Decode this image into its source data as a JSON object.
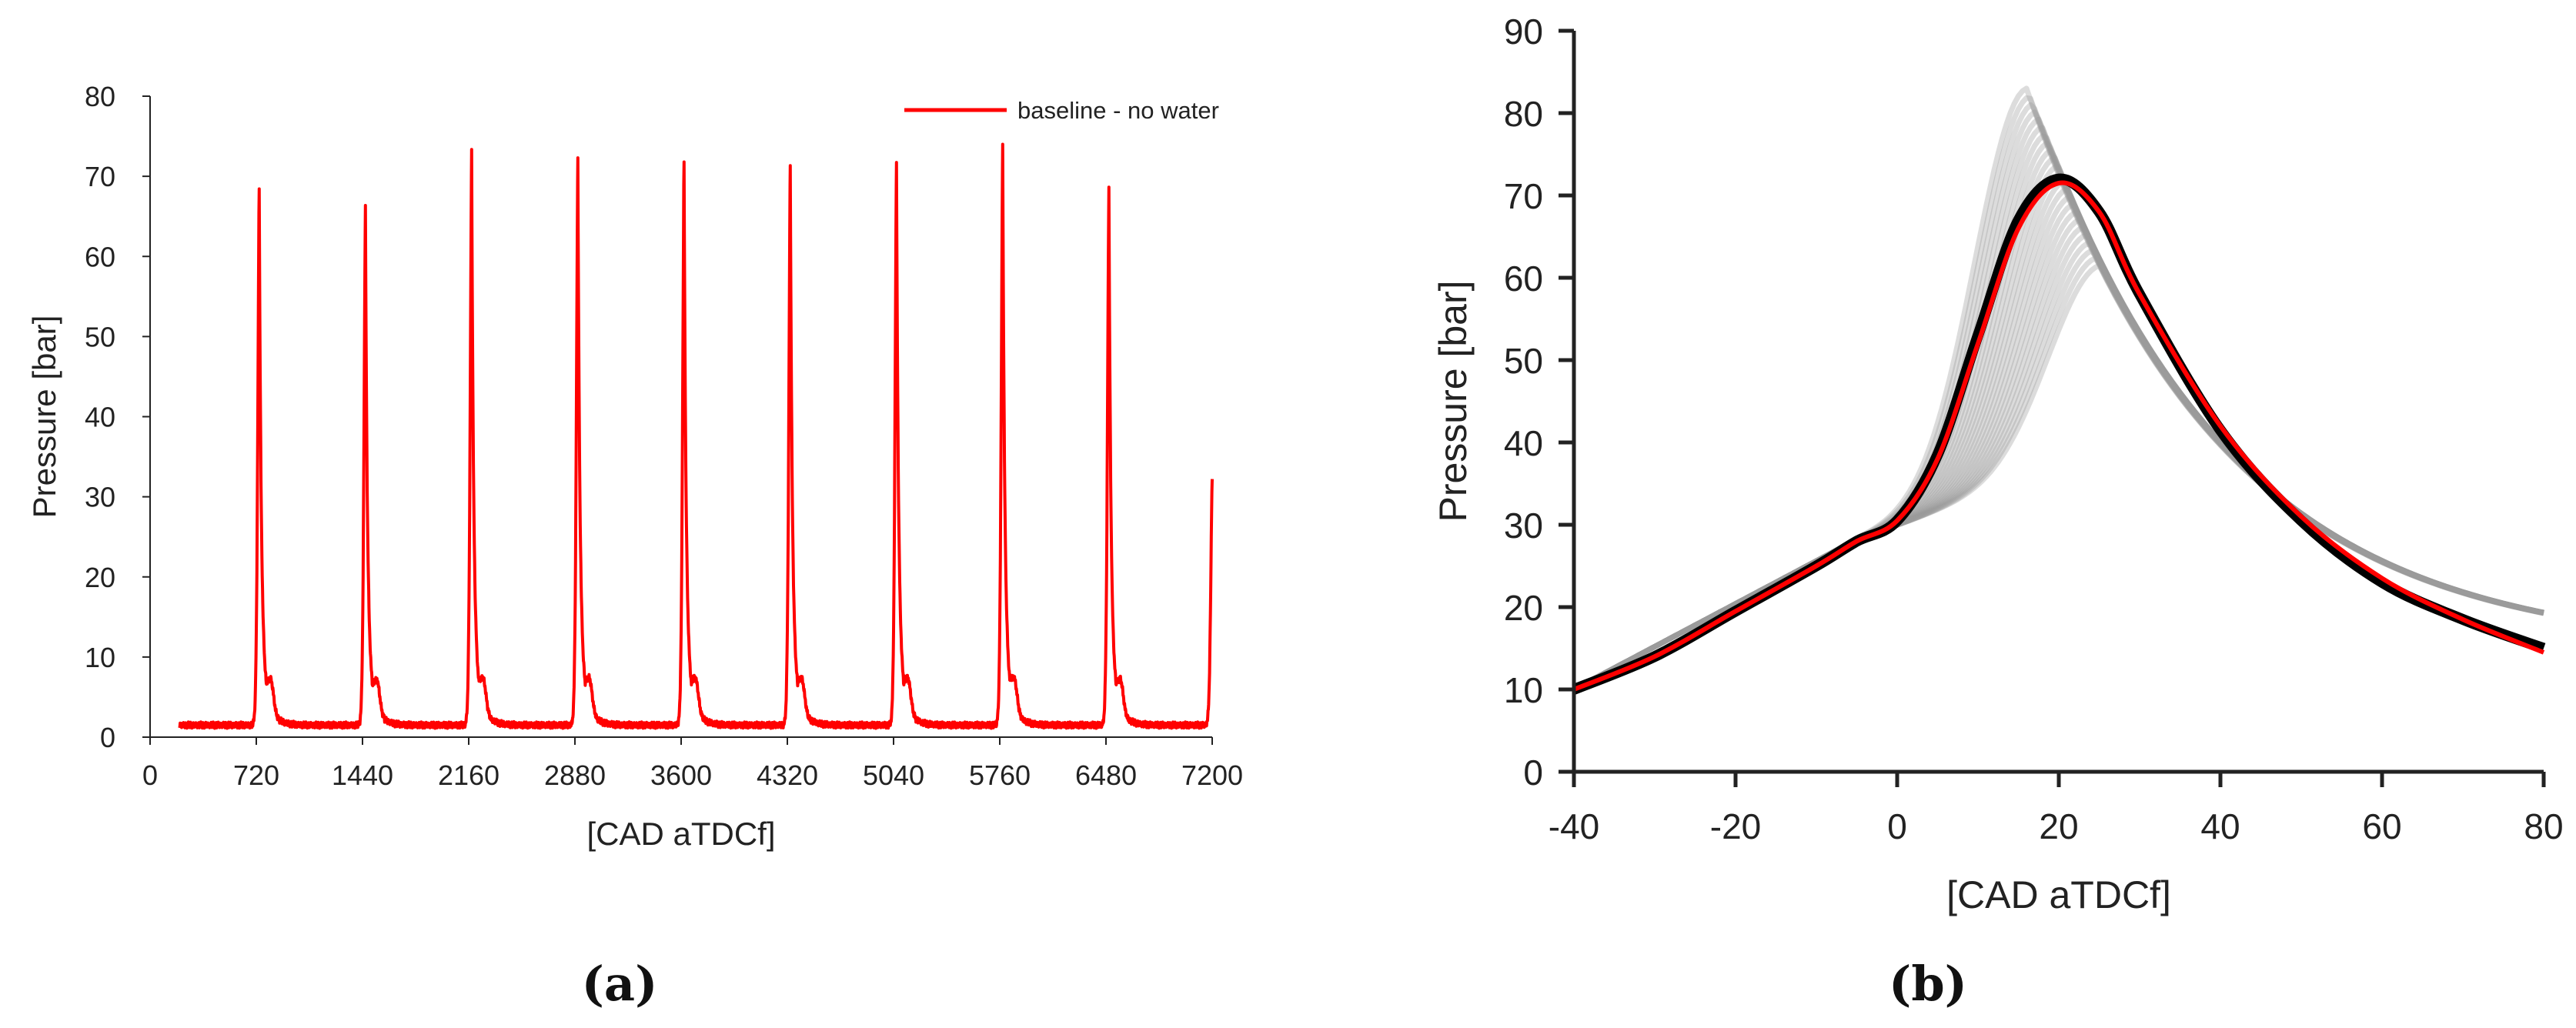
{
  "colors": {
    "trace": "#ff0000",
    "mean": "#000000",
    "cycles": "#9a9a9a",
    "axis": "#222222"
  },
  "chart_data": [
    {
      "panel": "(a)",
      "type": "line",
      "xlabel": "[CAD aTDCf]",
      "ylabel": "Pressure [bar]",
      "xlim": [
        0,
        7200
      ],
      "ylim": [
        0,
        80
      ],
      "xticks": [
        0,
        720,
        1440,
        2160,
        2880,
        3600,
        4320,
        5040,
        5760,
        6480,
        7200
      ],
      "xtick_labels": [
        "0",
        "720",
        "1440",
        "2160",
        "2880",
        "3600",
        "4320",
        "5040",
        "5760",
        "6480",
        "7200"
      ],
      "yticks": [
        0,
        10,
        20,
        30,
        40,
        50,
        60,
        70,
        80
      ],
      "ytick_labels": [
        "0",
        "10",
        "20",
        "30",
        "40",
        "50",
        "60",
        "70",
        "80"
      ],
      "legend": {
        "position": "top-right",
        "entries": [
          "baseline - no water"
        ]
      },
      "series": [
        {
          "name": "baseline - no water",
          "color": "#ff0000",
          "x_start": 200,
          "x_end": 7200,
          "baseline": 1.5,
          "peak_x": [
            740,
            1460,
            2180,
            2900,
            3620,
            4340,
            5060,
            5780,
            6500
          ],
          "peak_values": [
            69,
            66.7,
            73.5,
            72.8,
            72.2,
            72.1,
            72.5,
            74.5,
            69.2
          ],
          "end_value": 32
        }
      ]
    },
    {
      "panel": "(b)",
      "type": "line",
      "xlabel": "[CAD aTDCf]",
      "ylabel": "Pressure [bar]",
      "xlim": [
        -40,
        80
      ],
      "ylim": [
        0,
        90
      ],
      "xticks": [
        -40,
        -20,
        0,
        20,
        40,
        60,
        80
      ],
      "xtick_labels": [
        "-40",
        "-20",
        "0",
        "20",
        "40",
        "60",
        "80"
      ],
      "yticks": [
        0,
        10,
        20,
        30,
        40,
        50,
        60,
        70,
        80,
        90
      ],
      "ytick_labels": [
        "0",
        "10",
        "20",
        "30",
        "40",
        "50",
        "60",
        "70",
        "80",
        "90"
      ],
      "series": [
        {
          "name": "mean cycle (red)",
          "color": "#ff0000",
          "x": [
            -40,
            -30,
            -20,
            -10,
            -5,
            0,
            5,
            10,
            15,
            20,
            25,
            30,
            40,
            50,
            60,
            70,
            80
          ],
          "values": [
            10,
            14,
            19.5,
            25,
            28,
            30.5,
            38,
            52,
            66,
            71.5,
            68,
            58,
            42,
            31,
            23.5,
            18.5,
            14.5
          ]
        },
        {
          "name": "mean cycle (black)",
          "color": "#000000",
          "x": [
            -40,
            -30,
            -20,
            -10,
            -5,
            0,
            5,
            10,
            15,
            20,
            25,
            30,
            40,
            50,
            60,
            70,
            80
          ],
          "values": [
            10,
            14,
            19.5,
            25,
            28,
            30.5,
            38.5,
            53,
            67,
            72,
            68,
            58,
            41.5,
            30.5,
            23,
            18.5,
            15
          ]
        }
      ],
      "cycle_envelope": {
        "color": "#9a9a9a",
        "cycle_count": 24,
        "peak_angle_range": [
          16,
          25
        ],
        "peak_value_range": [
          61.5,
          83
        ]
      }
    }
  ],
  "panel_labels": {
    "a": "(a)",
    "b": "(b)"
  }
}
